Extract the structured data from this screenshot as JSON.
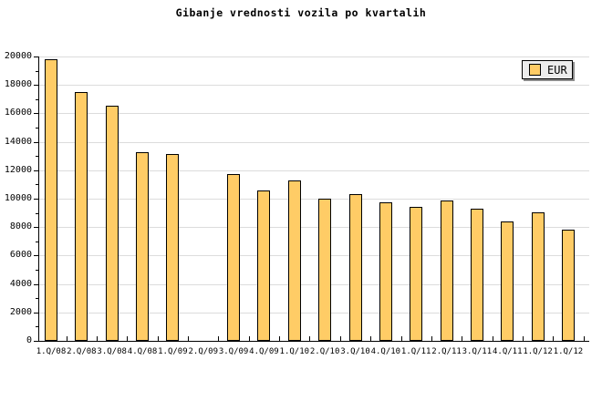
{
  "title": "Gibanje vrednosti vozila po kvartalih",
  "legend": {
    "label": "EUR"
  },
  "colors": {
    "background": "#FFFFFF",
    "bar_fill": "#FFCC66",
    "bar_border": "#000000",
    "grid": "#DCDCDC",
    "axis": "#000000",
    "text": "#000000",
    "legend_bg": "#ECECEC",
    "legend_shadow": "#8C8C8C"
  },
  "chart_data": {
    "type": "bar",
    "title": "Gibanje vrednosti vozila po kvartalih",
    "categories": [
      "1.Q/08",
      "2.Q/08",
      "3.Q/08",
      "4.Q/08",
      "1.Q/09",
      "2.Q/09",
      "3.Q/09",
      "4.Q/09",
      "1.Q/10",
      "2.Q/10",
      "3.Q/10",
      "4.Q/10",
      "1.Q/11",
      "2.Q/11",
      "3.Q/11",
      "4.Q/11",
      "1.Q/12",
      "1.Q/12"
    ],
    "series": [
      {
        "name": "EUR",
        "values": [
          19800,
          17500,
          16550,
          13250,
          13150,
          null,
          11750,
          10550,
          11300,
          10000,
          10300,
          9750,
          9450,
          9900,
          9300,
          8400,
          9050,
          7850
        ]
      }
    ],
    "xlabel": "",
    "ylabel": "",
    "ylim": [
      0,
      20000
    ],
    "ytick_step": 2000,
    "yminor_step": 1000,
    "ytick_labels": [
      "0",
      "2000",
      "4000",
      "6000",
      "8000",
      "10000",
      "12000",
      "14000",
      "16000",
      "18000",
      "20000"
    ],
    "grid": "horizontal",
    "legend_position": "top-right"
  }
}
